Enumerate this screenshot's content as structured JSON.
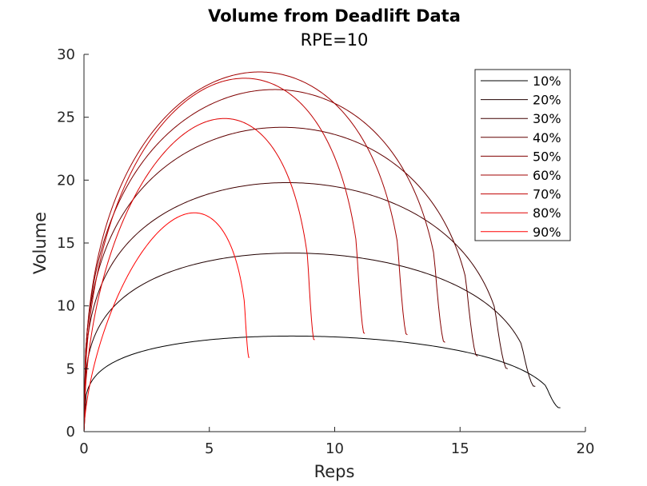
{
  "chart_data": {
    "type": "line",
    "title": "Volume from Deadlift Data",
    "subtitle": "RPE=10",
    "xlabel": "Reps",
    "ylabel": "Volume",
    "xlim": [
      0,
      20
    ],
    "ylim": [
      0,
      30
    ],
    "xticks": [
      0,
      5,
      10,
      15,
      20
    ],
    "yticks": [
      0,
      5,
      10,
      15,
      20,
      25,
      30
    ],
    "grid": false,
    "legend_position": "top-right",
    "series": [
      {
        "name": "10%",
        "color": "#000000",
        "max_reps": 19.0,
        "peak_x": 8.3,
        "peak_y": 7.6,
        "end_volume": 1.9
      },
      {
        "name": "20%",
        "color": "#200000",
        "max_reps": 18.0,
        "peak_x": 8.3,
        "peak_y": 14.2,
        "end_volume": 3.6
      },
      {
        "name": "30%",
        "color": "#400000",
        "max_reps": 16.9,
        "peak_x": 8.1,
        "peak_y": 19.8,
        "end_volume": 5.0
      },
      {
        "name": "40%",
        "color": "#600000",
        "max_reps": 15.7,
        "peak_x": 7.9,
        "peak_y": 24.2,
        "end_volume": 6.0
      },
      {
        "name": "50%",
        "color": "#800000",
        "max_reps": 14.4,
        "peak_x": 7.6,
        "peak_y": 27.2,
        "end_volume": 7.1
      },
      {
        "name": "60%",
        "color": "#a00000",
        "max_reps": 12.9,
        "peak_x": 7.0,
        "peak_y": 28.6,
        "end_volume": 7.7
      },
      {
        "name": "70%",
        "color": "#c00000",
        "max_reps": 11.2,
        "peak_x": 6.4,
        "peak_y": 28.1,
        "end_volume": 7.8
      },
      {
        "name": "80%",
        "color": "#e00000",
        "max_reps": 9.2,
        "peak_x": 5.6,
        "peak_y": 24.9,
        "end_volume": 7.3
      },
      {
        "name": "90%",
        "color": "#ff0000",
        "max_reps": 6.6,
        "peak_x": 4.4,
        "peak_y": 17.4,
        "end_volume": 5.9
      }
    ]
  }
}
